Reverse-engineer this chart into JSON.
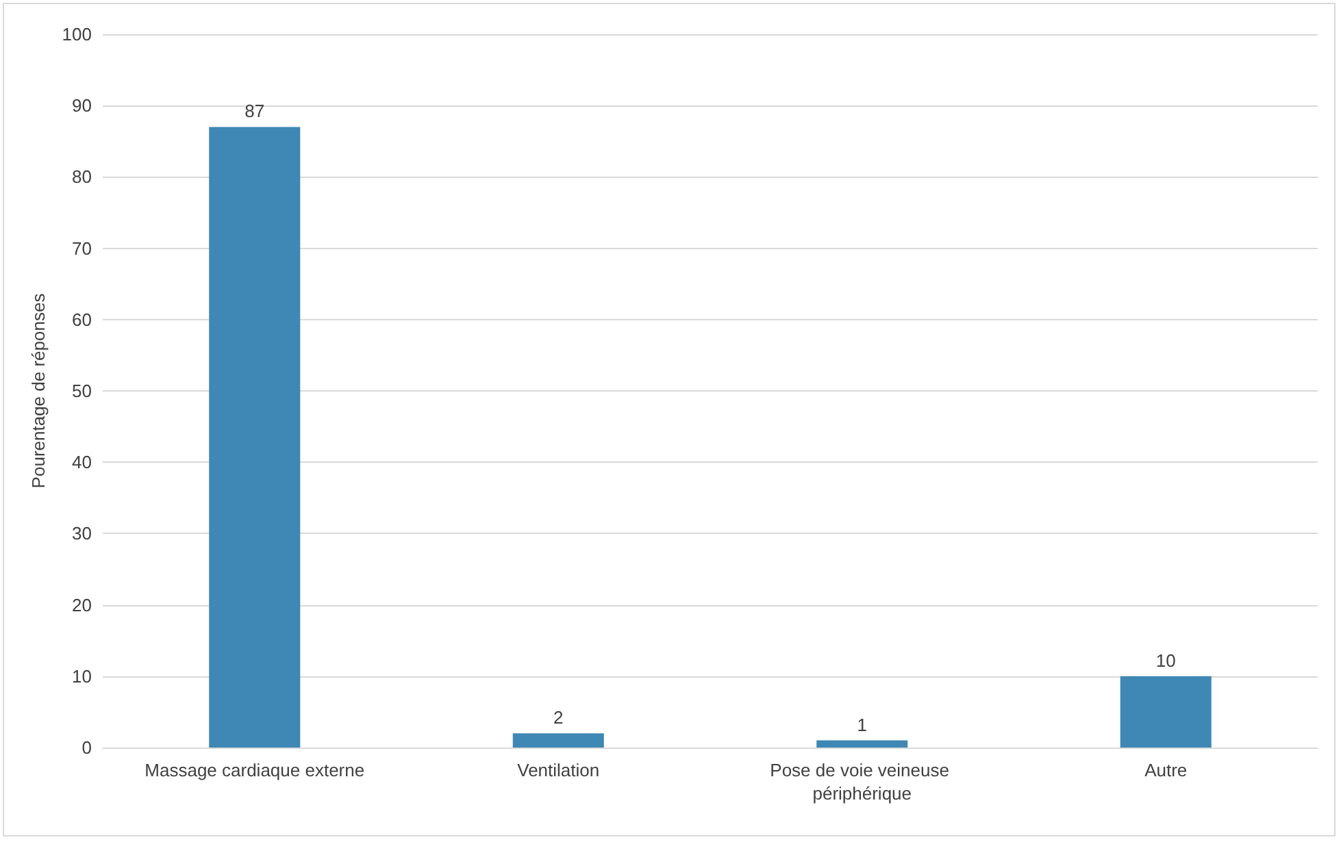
{
  "chart_data": {
    "type": "bar",
    "ylabel": "Pourentage de réponses",
    "categories": [
      "Massage cardiaque externe",
      "Ventilation",
      "Pose de voie veineuse périphérique",
      "Autre"
    ],
    "values": [
      87,
      2,
      1,
      10
    ],
    "color": "#3f87b4",
    "ylim": [
      0,
      100
    ],
    "yticks": [
      0,
      10,
      20,
      30,
      40,
      50,
      60,
      70,
      80,
      90,
      100
    ],
    "grid": "y",
    "data_labels": true
  }
}
